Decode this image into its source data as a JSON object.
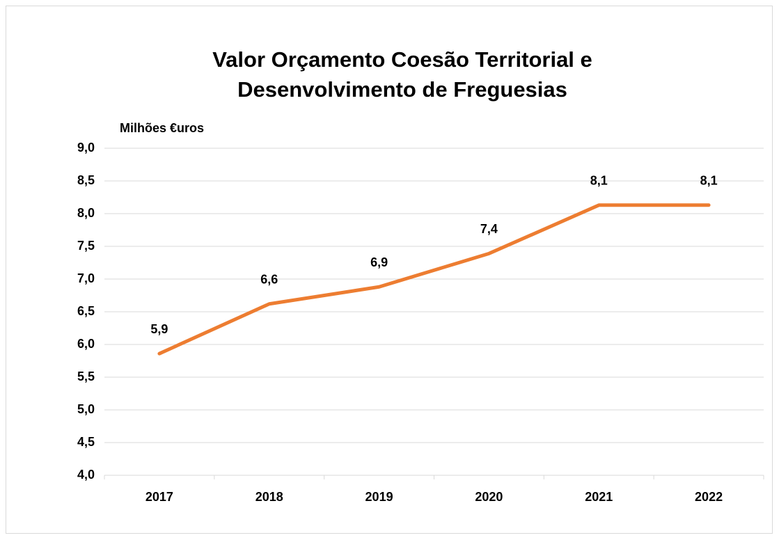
{
  "chart_data": {
    "type": "line",
    "title": [
      "Valor Orçamento Coesão Territorial e",
      "Desenvolvimento de Freguesias"
    ],
    "y_label": "Milhões €uros",
    "categories": [
      "2017",
      "2018",
      "2019",
      "2020",
      "2021",
      "2022"
    ],
    "values": [
      5.86,
      6.62,
      6.88,
      7.39,
      8.13,
      8.13
    ],
    "value_labels": [
      "5,9",
      "6,6",
      "6,9",
      "7,4",
      "8,1",
      "8,1"
    ],
    "color": "#ed7d31",
    "ylim": [
      4,
      9
    ],
    "yticks": [
      {
        "value": 4,
        "label": "4,0"
      },
      {
        "value": 4.5,
        "label": "4,5"
      },
      {
        "value": 5,
        "label": "5,0"
      },
      {
        "value": 5.5,
        "label": "5,5"
      },
      {
        "value": 6,
        "label": "6,0"
      },
      {
        "value": 6.5,
        "label": "6,5"
      },
      {
        "value": 7,
        "label": "7,0"
      },
      {
        "value": 7.5,
        "label": "7,5"
      },
      {
        "value": 8,
        "label": "8,0"
      },
      {
        "value": 8.5,
        "label": "8,5"
      },
      {
        "value": 9,
        "label": "9,0"
      }
    ],
    "grid": true
  }
}
